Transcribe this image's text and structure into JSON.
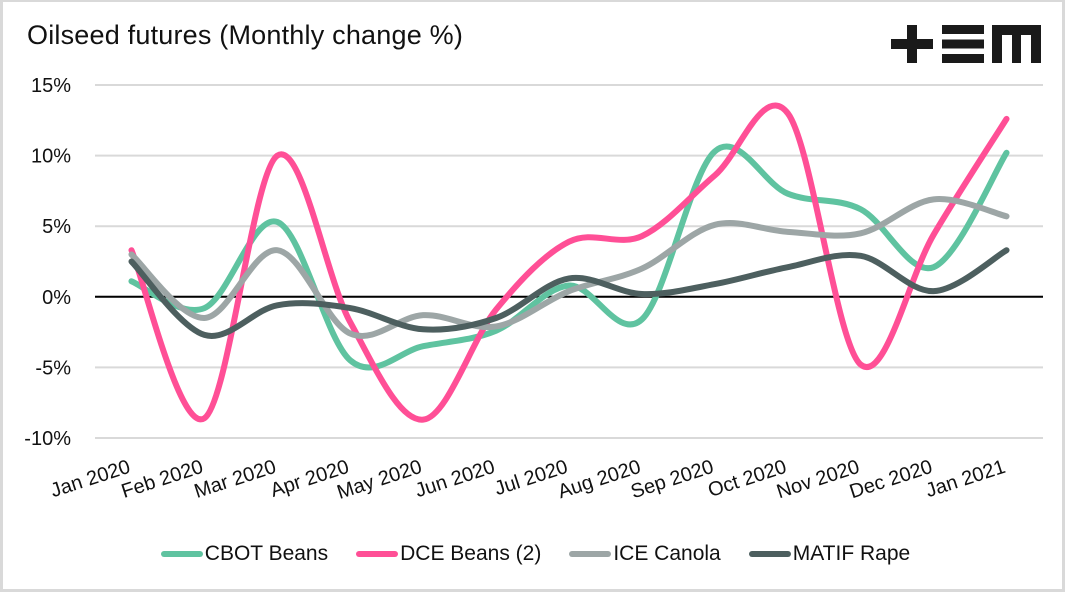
{
  "header": {
    "title": "Oilseed futures (Monthly change %)",
    "logo": "+EM-logo"
  },
  "chart_data": {
    "type": "line",
    "title": "Oilseed futures (Monthly change %)",
    "xlabel": "",
    "ylabel": "",
    "ylim": [
      -10,
      15
    ],
    "yticks": [
      15,
      10,
      5,
      0,
      -5,
      -10
    ],
    "ytick_labels": [
      "15%",
      "10%",
      "5%",
      "0%",
      "-5%",
      "-10%"
    ],
    "grid": true,
    "smoothed": true,
    "legend_position": "bottom",
    "categories": [
      "Jan 2020",
      "Feb 2020",
      "Mar 2020",
      "Apr 2020",
      "May 2020",
      "Jun 2020",
      "Jul 2020",
      "Aug 2020",
      "Sep 2020",
      "Oct 2020",
      "Nov 2020",
      "Dec 2020",
      "Jan 2021"
    ],
    "series": [
      {
        "name": "CBOT Beans",
        "color": "#5fc3a0",
        "values": [
          1.1,
          -0.8,
          5.3,
          -4.5,
          -3.5,
          -2.4,
          0.8,
          -1.6,
          10.3,
          7.3,
          6.2,
          2.1,
          10.2
        ]
      },
      {
        "name": "DCE Beans (2)",
        "color": "#ff4f96",
        "values": [
          3.3,
          -8.6,
          10.0,
          -1.8,
          -8.7,
          -0.9,
          3.9,
          4.3,
          8.6,
          13.0,
          -4.8,
          4.4,
          12.6
        ]
      },
      {
        "name": "ICE Canola",
        "color": "#9da6a6",
        "values": [
          3.0,
          -1.5,
          3.3,
          -2.6,
          -1.3,
          -2.1,
          0.4,
          2.0,
          5.1,
          4.6,
          4.5,
          6.9,
          5.7
        ]
      },
      {
        "name": "MATIF Rape",
        "color": "#4d5f5f",
        "values": [
          2.5,
          -2.7,
          -0.6,
          -0.8,
          -2.3,
          -1.5,
          1.3,
          0.2,
          0.9,
          2.1,
          2.9,
          0.4,
          3.3
        ]
      }
    ]
  }
}
